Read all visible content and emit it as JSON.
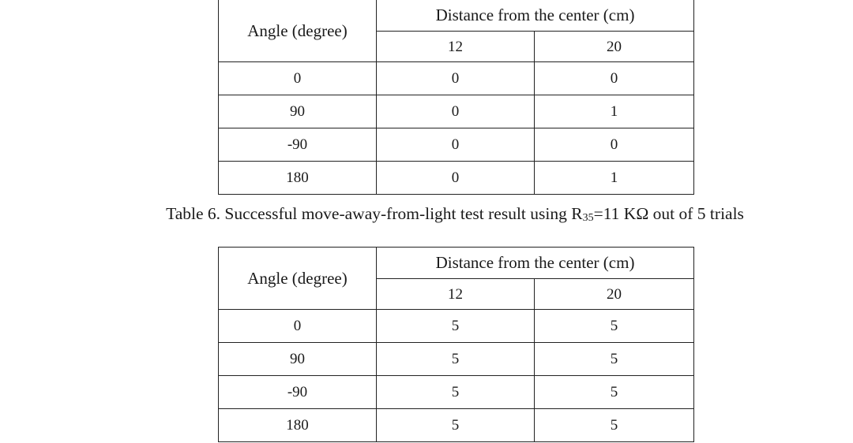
{
  "tables": [
    {
      "header": {
        "row_label": "Angle (degree)",
        "group_label": "Distance from the center (cm)",
        "distances": [
          "12",
          "20"
        ]
      },
      "rows": [
        {
          "angle": "0",
          "d12": "0",
          "d20": "0"
        },
        {
          "angle": "90",
          "d12": "0",
          "d20": "1"
        },
        {
          "angle": "-90",
          "d12": "0",
          "d20": "0"
        },
        {
          "angle": "180",
          "d12": "0",
          "d20": "1"
        }
      ]
    },
    {
      "header": {
        "row_label": "Angle (degree)",
        "group_label": "Distance from the center (cm)",
        "distances": [
          "12",
          "20"
        ]
      },
      "rows": [
        {
          "angle": "0",
          "d12": "5",
          "d20": "5"
        },
        {
          "angle": "90",
          "d12": "5",
          "d20": "5"
        },
        {
          "angle": "-90",
          "d12": "5",
          "d20": "5"
        },
        {
          "angle": "180",
          "d12": "5",
          "d20": "5"
        }
      ]
    }
  ],
  "caption": {
    "prefix": "Table 6. Successful move-away-from-light test result using R",
    "subscript": "35",
    "suffix": "=11 KΩ out of 5 trials"
  }
}
